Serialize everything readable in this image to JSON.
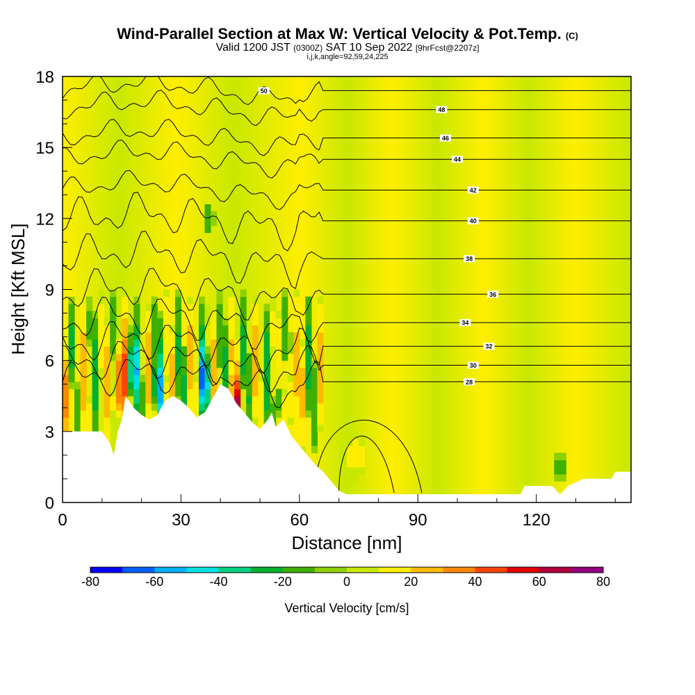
{
  "chart_data": {
    "type": "heatmap",
    "title": "Wind-Parallel Section at Max W: Vertical Velocity & Pot.Temp.",
    "title_mark": "(C)",
    "subtitle_main_a": "Valid 1200 JST",
    "subtitle_small_a": "(0300Z)",
    "subtitle_main_b": "SAT 10 Sep 2022",
    "subtitle_small_b": "[9hrFcst@2207z]",
    "subtitle2": "i,j,k,angle=92,59,24,225",
    "xlabel": "Distance [nm]",
    "ylabel": "Height [Kft MSL]",
    "xlim": [
      0,
      144
    ],
    "ylim": [
      0,
      18
    ],
    "x_ticks": [
      0,
      30,
      60,
      90,
      120
    ],
    "y_ticks": [
      0,
      3,
      6,
      9,
      12,
      15,
      18
    ],
    "colorbar": {
      "label": "Vertical Velocity [cm/s]",
      "ticks": [
        -80,
        -60,
        -40,
        -20,
        0,
        20,
        40,
        60,
        80
      ],
      "bounds": [
        -80,
        -70,
        -60,
        -50,
        -40,
        -30,
        -20,
        -10,
        0,
        10,
        20,
        30,
        40,
        50,
        60,
        70,
        80
      ],
      "colors": [
        "#0000ff",
        "#0060ff",
        "#00b0ff",
        "#00e0e0",
        "#00d080",
        "#00b030",
        "#40b000",
        "#90d000",
        "#c8e800",
        "#ffee00",
        "#ffbb00",
        "#ff8800",
        "#ff4400",
        "#e00000",
        "#b00040",
        "#900080"
      ]
    },
    "isentropes": [
      {
        "value": 28,
        "label_x": 103,
        "label_y": 5.1
      },
      {
        "value": 30,
        "label_x": 104,
        "label_y": 5.8
      },
      {
        "value": 32,
        "label_x": 108,
        "label_y": 6.6
      },
      {
        "value": 34,
        "label_x": 102,
        "label_y": 7.6
      },
      {
        "value": 36,
        "label_x": 109,
        "label_y": 8.8
      },
      {
        "value": 38,
        "label_x": 103,
        "label_y": 10.3
      },
      {
        "value": 40,
        "label_x": 104,
        "label_y": 11.9
      },
      {
        "value": 42,
        "label_x": 104,
        "label_y": 13.2
      },
      {
        "value": 44,
        "label_x": 100,
        "label_y": 14.5
      },
      {
        "value": 46,
        "label_x": 97,
        "label_y": 15.4
      },
      {
        "value": 48,
        "label_x": 96,
        "label_y": 16.6
      },
      {
        "value": 50,
        "label_x": 51,
        "label_y": 17.4
      }
    ],
    "terrain": [
      [
        0,
        3.0
      ],
      [
        10,
        3.0
      ],
      [
        12,
        2.5
      ],
      [
        13,
        2.0
      ],
      [
        14,
        3.0
      ],
      [
        15,
        3.5
      ],
      [
        16,
        4.5
      ],
      [
        18,
        4.0
      ],
      [
        20,
        3.7
      ],
      [
        22,
        3.5
      ],
      [
        24,
        3.7
      ],
      [
        26,
        4.3
      ],
      [
        28,
        4.5
      ],
      [
        30,
        4.3
      ],
      [
        32,
        4.0
      ],
      [
        34,
        3.6
      ],
      [
        36,
        3.8
      ],
      [
        38,
        4.4
      ],
      [
        40,
        5.0
      ],
      [
        42,
        4.8
      ],
      [
        44,
        4.2
      ],
      [
        46,
        3.8
      ],
      [
        48,
        3.4
      ],
      [
        50,
        3.1
      ],
      [
        52,
        3.5
      ],
      [
        53,
        3.8
      ],
      [
        54,
        3.2
      ],
      [
        56,
        3.5
      ],
      [
        58,
        2.8
      ],
      [
        60,
        2.4
      ],
      [
        62,
        2.0
      ],
      [
        64,
        1.6
      ],
      [
        66,
        1.3
      ],
      [
        68,
        0.9
      ],
      [
        70,
        0.5
      ],
      [
        72,
        0.35
      ],
      [
        90,
        0.35
      ],
      [
        116,
        0.35
      ],
      [
        117,
        0.7
      ],
      [
        124,
        0.7
      ],
      [
        126,
        0.35
      ],
      [
        128,
        0.7
      ],
      [
        132,
        1.0
      ],
      [
        139,
        1.0
      ],
      [
        140,
        1.3
      ],
      [
        144,
        1.3
      ]
    ]
  }
}
